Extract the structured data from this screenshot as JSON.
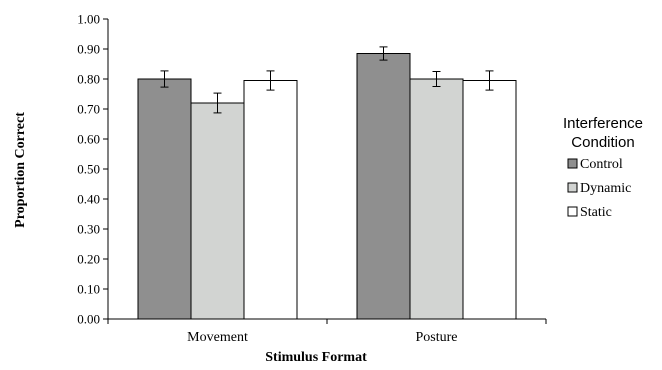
{
  "chart_data": {
    "type": "bar",
    "categories": [
      "Movement",
      "Posture"
    ],
    "series": [
      {
        "name": "Control",
        "values": [
          0.8,
          0.885
        ],
        "error": [
          0.027,
          0.022
        ],
        "color": "#8f8f8f"
      },
      {
        "name": "Dynamic",
        "values": [
          0.72,
          0.8
        ],
        "error": [
          0.033,
          0.025
        ],
        "color": "#d2d4d2"
      },
      {
        "name": "Static",
        "values": [
          0.795,
          0.795
        ],
        "error": [
          0.032,
          0.032
        ],
        "color": "#ffffff"
      }
    ],
    "xlabel": "Stimulus Format",
    "ylabel": "Proportion Correct",
    "ylim": [
      0,
      1.0
    ],
    "yticks": [
      "0.00",
      "0.10",
      "0.20",
      "0.30",
      "0.40",
      "0.50",
      "0.60",
      "0.70",
      "0.80",
      "0.90",
      "1.00"
    ],
    "legend": {
      "title_line1": "Interference",
      "title_line2": "Condition",
      "position": "right"
    },
    "grid": false
  }
}
